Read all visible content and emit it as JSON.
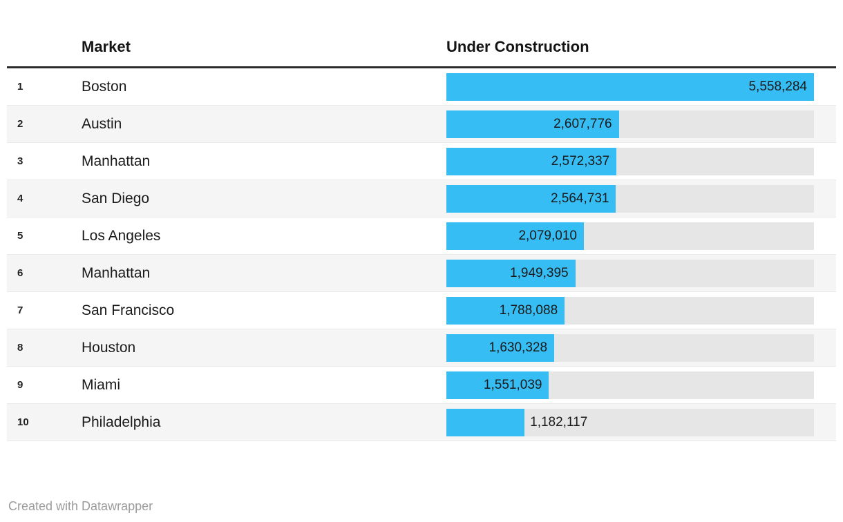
{
  "header": {
    "rank_label": "",
    "market_label": "Market",
    "value_label": "Under Construction"
  },
  "footer": {
    "credit": "Created with Datawrapper"
  },
  "chart_data": {
    "type": "bar",
    "orientation": "horizontal",
    "title": "",
    "columns": [
      "Market",
      "Under Construction"
    ],
    "max_value": 5558284,
    "value_range": [
      0,
      5558284
    ],
    "legend": "none",
    "grid": "off",
    "colors": {
      "bar": "#35bdf4",
      "track": "#e6e6e6",
      "row_stripe": "#f5f5f5",
      "header_rule": "#2b2b2b",
      "text": "#1a1a1a",
      "credit_text": "#9b9b9b"
    },
    "rows": [
      {
        "rank": "1",
        "market": "Boston",
        "value": 5558284,
        "label": "5,558,284"
      },
      {
        "rank": "2",
        "market": "Austin",
        "value": 2607776,
        "label": "2,607,776"
      },
      {
        "rank": "3",
        "market": "Manhattan",
        "value": 2572337,
        "label": "2,572,337"
      },
      {
        "rank": "4",
        "market": "San Diego",
        "value": 2564731,
        "label": "2,564,731"
      },
      {
        "rank": "5",
        "market": "Los Angeles",
        "value": 2079010,
        "label": "2,079,010"
      },
      {
        "rank": "6",
        "market": "Manhattan",
        "value": 1949395,
        "label": "1,949,395"
      },
      {
        "rank": "7",
        "market": "San Francisco",
        "value": 1788088,
        "label": "1,788,088"
      },
      {
        "rank": "8",
        "market": "Houston",
        "value": 1630328,
        "label": "1,630,328"
      },
      {
        "rank": "9",
        "market": "Miami",
        "value": 1551039,
        "label": "1,551,039"
      },
      {
        "rank": "10",
        "market": "Philadelphia",
        "value": 1182117,
        "label": "1,182,117"
      }
    ]
  }
}
